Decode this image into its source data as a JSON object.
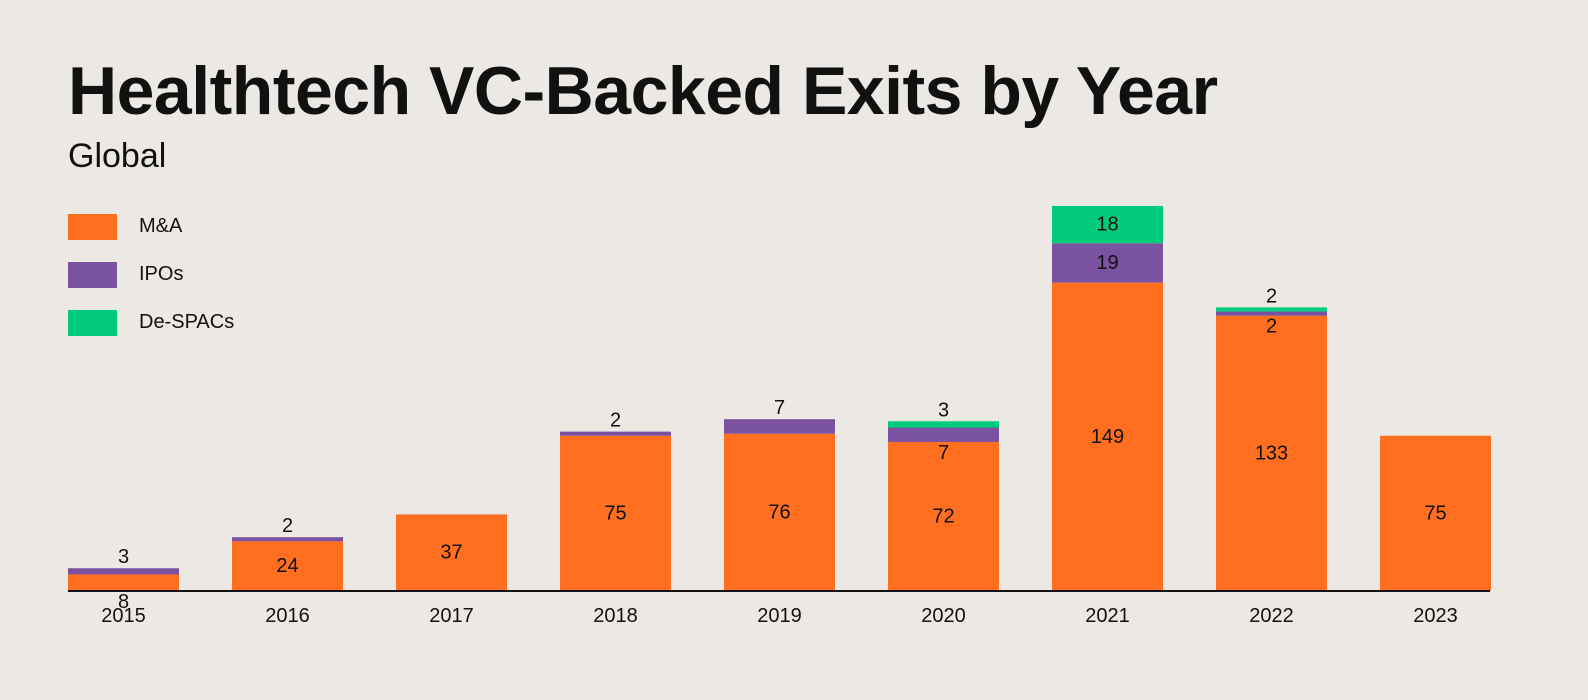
{
  "title": "Healthtech VC-Backed Exits by Year",
  "subtitle": "Global",
  "legend": [
    {
      "label": "M&A",
      "color": "#ff6f1f"
    },
    {
      "label": "IPOs",
      "color": "#7a52a0"
    },
    {
      "label": "De-SPACs",
      "color": "#00cc7c"
    }
  ],
  "chart_data": {
    "type": "bar",
    "stacked": true,
    "title": "Healthtech VC-Backed Exits by Year",
    "subtitle": "Global",
    "categories": [
      "2015",
      "2016",
      "2017",
      "2018",
      "2019",
      "2020",
      "2021",
      "2022",
      "2023"
    ],
    "series": [
      {
        "name": "M&A",
        "color": "#ff6f1f",
        "values": [
          8,
          24,
          37,
          75,
          76,
          72,
          149,
          133,
          75
        ]
      },
      {
        "name": "IPOs",
        "color": "#7a52a0",
        "values": [
          3,
          2,
          0,
          2,
          7,
          7,
          19,
          2,
          0
        ]
      },
      {
        "name": "De-SPACs",
        "color": "#00cc7c",
        "values": [
          0,
          0,
          0,
          0,
          0,
          3,
          18,
          2,
          0
        ]
      }
    ],
    "ylim": [
      0,
      190
    ],
    "grid": false,
    "legend_position": "top-left"
  }
}
